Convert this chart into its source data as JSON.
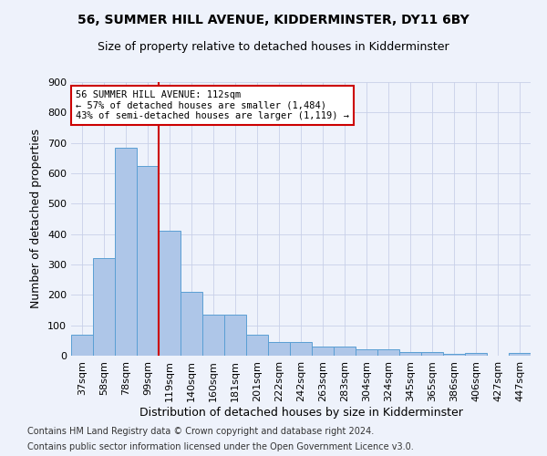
{
  "title": "56, SUMMER HILL AVENUE, KIDDERMINSTER, DY11 6BY",
  "subtitle": "Size of property relative to detached houses in Kidderminster",
  "xlabel": "Distribution of detached houses by size in Kidderminster",
  "ylabel": "Number of detached properties",
  "categories": [
    "37sqm",
    "58sqm",
    "78sqm",
    "99sqm",
    "119sqm",
    "140sqm",
    "160sqm",
    "181sqm",
    "201sqm",
    "222sqm",
    "242sqm",
    "263sqm",
    "283sqm",
    "304sqm",
    "324sqm",
    "345sqm",
    "365sqm",
    "386sqm",
    "406sqm",
    "427sqm",
    "447sqm"
  ],
  "values": [
    70,
    320,
    685,
    625,
    410,
    210,
    135,
    135,
    70,
    45,
    45,
    30,
    30,
    22,
    20,
    12,
    12,
    5,
    8,
    0,
    8
  ],
  "bar_color": "#aec6e8",
  "bar_edge_color": "#5a9fd4",
  "annotation_line1": "56 SUMMER HILL AVENUE: 112sqm",
  "annotation_line2": "← 57% of detached houses are smaller (1,484)",
  "annotation_line3": "43% of semi-detached houses are larger (1,119) →",
  "annotation_box_color": "#ffffff",
  "annotation_box_edge": "#cc0000",
  "vline_color": "#cc0000",
  "vline_x_index": 4,
  "ylim": [
    0,
    900
  ],
  "yticks": [
    0,
    100,
    200,
    300,
    400,
    500,
    600,
    700,
    800,
    900
  ],
  "footnote1": "Contains HM Land Registry data © Crown copyright and database right 2024.",
  "footnote2": "Contains public sector information licensed under the Open Government Licence v3.0.",
  "bg_color": "#eef2fb",
  "grid_color": "#c8d0e8",
  "title_fontsize": 10,
  "subtitle_fontsize": 9,
  "xlabel_fontsize": 9,
  "ylabel_fontsize": 9,
  "tick_fontsize": 8,
  "footnote_fontsize": 7
}
